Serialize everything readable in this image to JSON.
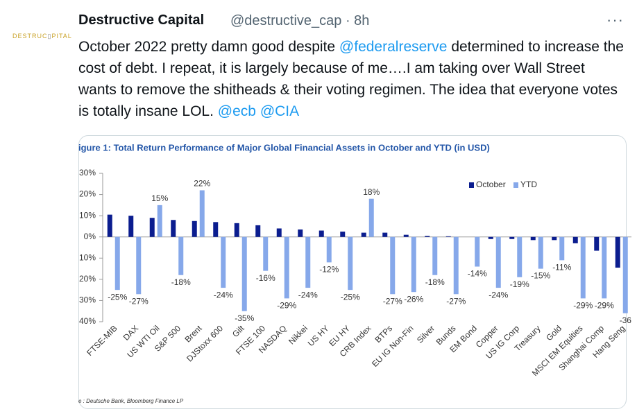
{
  "tweet": {
    "name": "Destructive Capital",
    "handle": "@destructive_cap",
    "time": "8h",
    "text": [
      "October 2022 pretty damn good despite",
      "@federalreserve",
      "determined to increase the cost of debt. I repeat, it is largely because of me….I am taking over Wall Street wants to remove the shitheads & their voting regimen. The idea that everyone votes is totally insane LOL.",
      "@ecb",
      "@CIA"
    ]
  },
  "chart_data": {
    "type": "bar",
    "title": "igure 1: Total Return Performance of Major Global Financial Assets in October and YTD (in USD)",
    "source": "e : Deutsche Bank, Bloomberg Finance LP",
    "categories": [
      "FTSE-MIB",
      "DAX",
      "US WTI Oil",
      "S&P 500",
      "Brent",
      "DJStoxx 600",
      "Gilt",
      "FTSE 100",
      "NASDAQ",
      "Nikkei",
      "US HY",
      "EU HY",
      "CRB Index",
      "BTPs",
      "EU IG Non-Fin",
      "Silver",
      "Bunds",
      "EM Bond",
      "Copper",
      "US IG Corp",
      "Treasury",
      "Gold",
      "MSCI EM Equities",
      "Shanghai Comp",
      "Hang Seng"
    ],
    "series": [
      {
        "name": "October",
        "color": "#0b1d8f",
        "values": [
          10.5,
          10,
          9,
          8,
          7.5,
          7,
          6.5,
          5.5,
          4,
          3.5,
          3,
          2.5,
          2,
          2,
          1,
          0.5,
          0.3,
          0,
          -1,
          -1,
          -1.5,
          -1.5,
          -3,
          -6.5,
          -14.5
        ]
      },
      {
        "name": "YTD",
        "color": "#86a8ea",
        "values": [
          -25,
          -27,
          15,
          -18,
          22,
          -24,
          -35,
          -16,
          -29,
          -24,
          -12,
          -25,
          18,
          -27,
          -26,
          -18,
          -27,
          -14,
          -24,
          -19,
          -15,
          -11,
          -29,
          -29,
          -36
        ],
        "value_labels": [
          "-25%",
          "-27%",
          "15%",
          "-18%",
          "22%",
          "-24%",
          "-35%",
          "-16%",
          "-29%",
          "-24%",
          "-12%",
          "-25%",
          "18%",
          "-27%",
          "-26%",
          "-18%",
          "-27%",
          "-14%",
          "-24%",
          "-19%",
          "-15%",
          "-11%",
          "-29%",
          "-29%",
          "-36"
        ]
      }
    ],
    "ylim": [
      -40,
      30
    ],
    "yticks": [
      {
        "value": 30,
        "label": "30%"
      },
      {
        "value": 20,
        "label": "20%"
      },
      {
        "value": 10,
        "label": "10%"
      },
      {
        "value": 0,
        "label": "0%"
      },
      {
        "value": -10,
        "label": "10%"
      },
      {
        "value": -20,
        "label": "20%"
      },
      {
        "value": -30,
        "label": "30%"
      },
      {
        "value": -40,
        "label": "40%"
      }
    ],
    "legend": "top-right"
  }
}
